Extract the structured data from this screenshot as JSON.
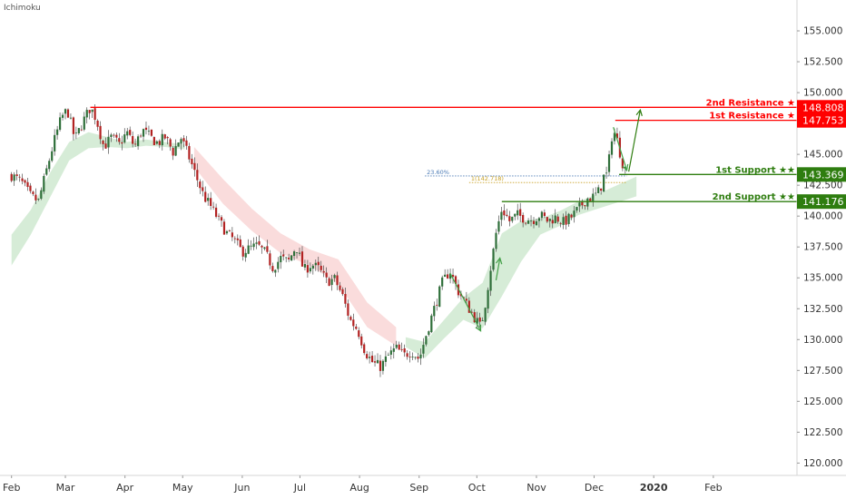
{
  "indicator_label": "Ichimoku",
  "chart_data": {
    "type": "candlestick",
    "title": "",
    "xlabel": "",
    "ylabel": "",
    "ylim": [
      119,
      157.5
    ],
    "y_ticks": [
      "120.000",
      "122.500",
      "125.000",
      "127.500",
      "130.000",
      "132.500",
      "135.000",
      "137.500",
      "140.000",
      "142.500",
      "145.000",
      "147.500",
      "150.000",
      "152.500",
      "155.000"
    ],
    "x_range_days": [
      -6,
      434
    ],
    "x_ticks": [
      {
        "label": "Feb",
        "day": 0
      },
      {
        "label": "Mar",
        "day": 28
      },
      {
        "label": "Apr",
        "day": 59
      },
      {
        "label": "May",
        "day": 89
      },
      {
        "label": "Jun",
        "day": 120
      },
      {
        "label": "Jul",
        "day": 150
      },
      {
        "label": "Aug",
        "day": 181
      },
      {
        "label": "Sep",
        "day": 212
      },
      {
        "label": "Oct",
        "day": 242
      },
      {
        "label": "Nov",
        "day": 273
      },
      {
        "label": "Dec",
        "day": 303
      },
      {
        "label": "2020",
        "day": 334
      },
      {
        "label": "Feb",
        "day": 365
      }
    ],
    "price_path": [
      [
        0,
        143.3
      ],
      [
        5,
        142.8
      ],
      [
        10,
        141.6
      ],
      [
        14,
        141.2
      ],
      [
        18,
        143.6
      ],
      [
        22,
        146.0
      ],
      [
        26,
        148.0
      ],
      [
        29,
        148.6
      ],
      [
        33,
        146.2
      ],
      [
        37,
        147.6
      ],
      [
        41,
        148.8
      ],
      [
        44,
        147.9
      ],
      [
        48,
        145.6
      ],
      [
        52,
        146.4
      ],
      [
        56,
        145.8
      ],
      [
        60,
        146.8
      ],
      [
        64,
        145.6
      ],
      [
        68,
        147.0
      ],
      [
        72,
        146.4
      ],
      [
        76,
        145.9
      ],
      [
        80,
        146.4
      ],
      [
        84,
        145.2
      ],
      [
        88,
        146.4
      ],
      [
        92,
        144.9
      ],
      [
        96,
        143.2
      ],
      [
        100,
        141.6
      ],
      [
        104,
        140.7
      ],
      [
        108,
        139.6
      ],
      [
        112,
        138.6
      ],
      [
        116,
        138.0
      ],
      [
        120,
        137.1
      ],
      [
        124,
        137.4
      ],
      [
        128,
        137.6
      ],
      [
        132,
        137.0
      ],
      [
        136,
        135.8
      ],
      [
        140,
        136.6
      ],
      [
        144,
        136.3
      ],
      [
        148,
        137.6
      ],
      [
        152,
        135.6
      ],
      [
        156,
        136.1
      ],
      [
        160,
        135.7
      ],
      [
        164,
        134.7
      ],
      [
        168,
        134.9
      ],
      [
        172,
        133.6
      ],
      [
        176,
        131.6
      ],
      [
        180,
        130.8
      ],
      [
        184,
        129.0
      ],
      [
        188,
        128.1
      ],
      [
        192,
        127.8
      ],
      [
        196,
        128.7
      ],
      [
        200,
        129.3
      ],
      [
        204,
        128.7
      ],
      [
        208,
        129.1
      ],
      [
        212,
        128.4
      ],
      [
        216,
        130.6
      ],
      [
        220,
        132.6
      ],
      [
        224,
        134.6
      ],
      [
        228,
        135.6
      ],
      [
        232,
        134.0
      ],
      [
        236,
        133.0
      ],
      [
        240,
        132.0
      ],
      [
        244,
        131.0
      ],
      [
        246,
        132.5
      ],
      [
        249,
        135.6
      ],
      [
        252,
        138.6
      ],
      [
        255,
        140.6
      ],
      [
        259,
        139.6
      ],
      [
        263,
        140.1
      ],
      [
        267,
        139.8
      ],
      [
        271,
        139.7
      ],
      [
        275,
        140.1
      ],
      [
        279,
        139.6
      ],
      [
        283,
        139.9
      ],
      [
        287,
        139.5
      ],
      [
        291,
        139.9
      ],
      [
        295,
        140.6
      ],
      [
        299,
        141.4
      ],
      [
        303,
        141.6
      ],
      [
        306,
        142.1
      ],
      [
        308,
        143.2
      ],
      [
        310,
        143.4
      ],
      [
        312,
        146.4
      ],
      [
        314,
        146.8
      ],
      [
        316,
        145.4
      ],
      [
        318,
        144.2
      ],
      [
        320,
        143.6
      ]
    ],
    "ichimoku_cloud": {
      "bullish_color": "#c8e6c9",
      "bearish_color": "#f8d0d0",
      "segments": [
        {
          "x": [
            0,
            10,
            20,
            30,
            40,
            50,
            60,
            70,
            80,
            90
          ],
          "upper": [
            138.5,
            140.5,
            143.5,
            146.0,
            146.8,
            146.4,
            146.0,
            146.2,
            146.0,
            145.8
          ],
          "lower": [
            136.0,
            138.5,
            141.5,
            144.5,
            145.5,
            145.6,
            145.5,
            145.7,
            145.6,
            145.4
          ],
          "color": "bullish"
        },
        {
          "x": [
            95,
            110,
            125,
            140,
            155,
            170,
            185,
            200
          ],
          "upper": [
            145.6,
            143.0,
            140.6,
            138.6,
            137.3,
            136.5,
            133.0,
            131.0
          ],
          "lower": [
            144.0,
            141.0,
            138.8,
            137.0,
            136.0,
            134.5,
            131.0,
            129.5
          ],
          "color": "bearish"
        },
        {
          "x": [
            205,
            215,
            225,
            235,
            245,
            255,
            265,
            275,
            285,
            295,
            305,
            315,
            325
          ],
          "upper": [
            130.2,
            129.8,
            131.6,
            133.4,
            134.6,
            138.6,
            139.6,
            139.8,
            140.4,
            141.2,
            141.8,
            142.5,
            143.2
          ],
          "lower": [
            129.4,
            128.5,
            130.1,
            131.6,
            130.9,
            133.5,
            136.3,
            138.5,
            139.2,
            140.1,
            140.6,
            141.1,
            141.6
          ],
          "color": "bullish"
        }
      ]
    },
    "levels": [
      {
        "label": "2nd Resistance ★",
        "price_label": "148.808",
        "value": 148.808,
        "color": "#ff0000",
        "start_day": 41
      },
      {
        "label": "1st Resistance ★",
        "price_label": "147.753",
        "value": 147.753,
        "color": "#ff0000",
        "start_day": 314
      },
      {
        "label": "1st Support ★★",
        "price_label": "143.369",
        "value": 143.369,
        "color": "#2e7d0f",
        "start_day": 316
      },
      {
        "label": "2nd Support ★★",
        "price_label": "141.176",
        "value": 141.176,
        "color": "#2e7d0f",
        "start_day": 255
      }
    ],
    "fibonacci": [
      {
        "label": "23.60%",
        "value": 143.25,
        "color": "#4a7ab5",
        "start_day": 215,
        "end_day": 320
      },
      {
        "label": "1(142.718)",
        "value": 142.718,
        "color": "#c9a227",
        "start_day": 238,
        "end_day": 320
      }
    ],
    "projection_arrow": {
      "from": [
        321,
        143.6
      ],
      "to": [
        327,
        148.6
      ],
      "color": "#2e7d0f"
    },
    "arrow_color": "#43a047",
    "bull_color": "#2f6f3a",
    "bear_color": "#b22222"
  }
}
